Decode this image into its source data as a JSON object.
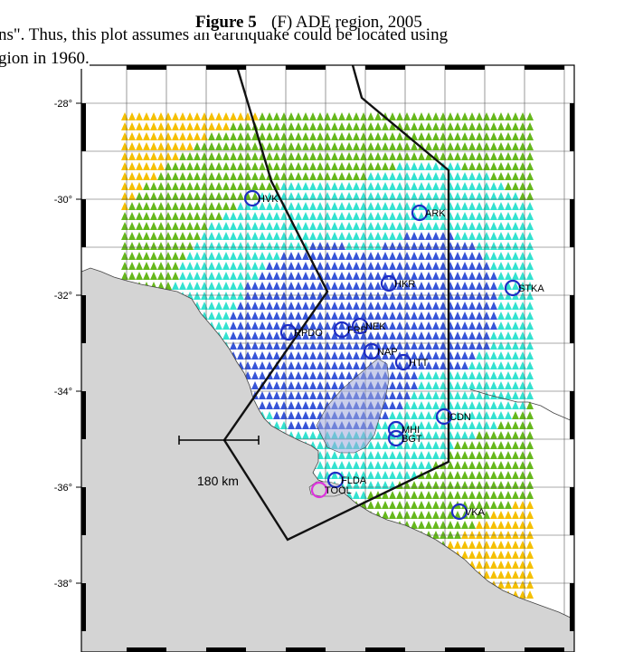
{
  "caption": {
    "figure_label": "Figure 5",
    "figure_title": "(F) ADE region, 2005",
    "line1_left": "ns\". Thus, this plot assumes an earthquake could be located using",
    "line2_left": "gion in 1960."
  },
  "map": {
    "lat_ticks": [
      {
        "value": -28,
        "label": "-28°"
      },
      {
        "value": -30,
        "label": "-30°"
      },
      {
        "value": -32,
        "label": "-32°"
      },
      {
        "value": -34,
        "label": "-34°"
      },
      {
        "value": -36,
        "label": "-36°"
      },
      {
        "value": -38,
        "label": "-38°"
      }
    ],
    "scale_bar_label": "180 km",
    "zone_colors": {
      "yellow": "#f5c000",
      "green": "#66b81c",
      "cyan": "#33e2d0",
      "blue": "#3755d8",
      "land": "#d4d4d4",
      "station": "#1f2dc4",
      "station_highlight": "#dd33dd"
    },
    "stations": [
      {
        "code": "HVK",
        "highlight": false
      },
      {
        "code": "ARK",
        "highlight": false
      },
      {
        "code": "HKR",
        "highlight": false
      },
      {
        "code": "STKA",
        "highlight": false
      },
      {
        "code": "RPDO",
        "highlight": false
      },
      {
        "code": "FRB",
        "highlight": false
      },
      {
        "code": "NEK",
        "highlight": false
      },
      {
        "code": "NAP",
        "highlight": false
      },
      {
        "code": "HTT",
        "highlight": false
      },
      {
        "code": "CDN",
        "highlight": false
      },
      {
        "code": "MHI",
        "highlight": false
      },
      {
        "code": "BGT",
        "highlight": false
      },
      {
        "code": "VKA",
        "highlight": false
      },
      {
        "code": "FLDA",
        "highlight": false
      },
      {
        "code": "TOOL",
        "highlight": true
      }
    ]
  }
}
